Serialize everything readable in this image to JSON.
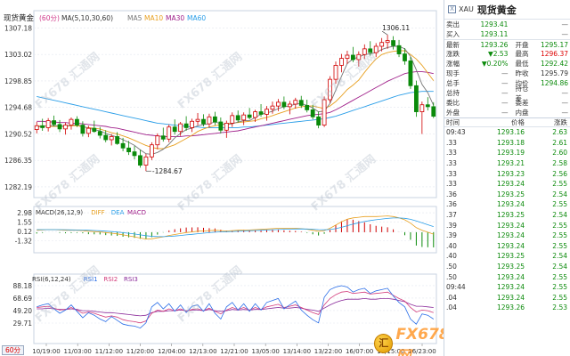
{
  "header": {
    "symbol_label": "现货黄金",
    "period": "(60分)",
    "ma_label": "MA(5,10,30,60)",
    "ma5": "MA5",
    "ma10": "MA10",
    "ma30": "MA30",
    "ma60": "MA60"
  },
  "price_axis": [
    "1307.18",
    "1303.02",
    "1298.85",
    "1294.68",
    "1290.52",
    "1286.35",
    "1282.19"
  ],
  "macd": {
    "label": "MACD(26,12,9)",
    "dif": "DIFF",
    "dea": "DEA",
    "macd": "MACD",
    "axis": [
      "2.98",
      "1.55",
      "0.12",
      "-1.32"
    ]
  },
  "rsi": {
    "label": "RSI(6,12,24)",
    "rsi1": "RSI1",
    "rsi2": "RSI2",
    "rsi3": "RSI3",
    "axis": [
      "88.18",
      "68.69",
      "49.20",
      "29.71"
    ]
  },
  "time_axis": [
    "10/19:00",
    "11/03:00",
    "11/12:00",
    "11/20:00",
    "12/04:00",
    "12/13:00",
    "12/21:00",
    "13/05:00",
    "13/14:00",
    "13/22:00",
    "16/07:00",
    "16/15:00",
    "16/23:00"
  ],
  "annotations": {
    "high": "1306.11",
    "low": "1284.67"
  },
  "period_tab": "60分",
  "watermark": "FX678 汇通网",
  "brand": {
    "coin": "汇",
    "text": "FX678 汇通网"
  },
  "colors": {
    "up": "#d00000",
    "down": "#0a8a0a",
    "ma5": "#777777",
    "ma10": "#e8a020",
    "ma30": "#a0208a",
    "ma60": "#2a9ee8"
  },
  "panel": {
    "icon": "X",
    "code": "XAU",
    "name": "现货黄金",
    "rows": [
      {
        "l1": "卖出",
        "v1": "1293.41",
        "c1": "down",
        "l2": "",
        "v2": "—",
        "c2": "dash"
      },
      {
        "l1": "买入",
        "v1": "1293.11",
        "c1": "down",
        "l2": "",
        "v2": "—",
        "c2": "dash"
      },
      {
        "l1": "最新",
        "v1": "1293.26",
        "c1": "down",
        "l2": "开盘",
        "v2": "1295.17",
        "c2": "down"
      },
      {
        "l1": "涨跌",
        "v1": "▼2.53",
        "c1": "down",
        "l2": "最高",
        "v2": "1296.37",
        "c2": "red"
      },
      {
        "l1": "涨幅",
        "v1": "▼0.20%",
        "c1": "down",
        "l2": "最低",
        "v2": "1292.42",
        "c2": "down"
      },
      {
        "l1": "现手",
        "v1": "—",
        "c1": "dash",
        "l2": "昨收",
        "v2": "1295.79",
        "c2": "blk"
      },
      {
        "l1": "总手",
        "v1": "—",
        "c1": "dash",
        "l2": "均价",
        "v2": "1294.86",
        "c2": "down"
      },
      {
        "l1": "总持",
        "v1": "—",
        "c1": "dash",
        "l2": "持仓差",
        "v2": "—",
        "c2": "dash"
      },
      {
        "l1": "委比",
        "v1": "—",
        "c1": "dash",
        "l2": "委差",
        "v2": "—",
        "c2": "dash"
      },
      {
        "l1": "外盘",
        "v1": "—",
        "c1": "dash",
        "l2": "内盘",
        "v2": "—",
        "c2": "dash"
      }
    ],
    "tick_header": {
      "time": "时间",
      "price": "价格",
      "change": "涨跌"
    },
    "ticks": [
      {
        "t": "09:43",
        "p": "1293.16",
        "c": "2.63"
      },
      {
        "t": ".33",
        "p": "1293.18",
        "c": "2.61"
      },
      {
        "t": ".33",
        "p": "1293.19",
        "c": "2.60"
      },
      {
        "t": ".33",
        "p": "1293.21",
        "c": "2.58"
      },
      {
        "t": ".33",
        "p": "1293.23",
        "c": "2.56"
      },
      {
        "t": ".33",
        "p": "1293.24",
        "c": "2.55"
      },
      {
        "t": ".36",
        "p": "1293.25",
        "c": "2.54"
      },
      {
        "t": ".36",
        "p": "1293.24",
        "c": "2.55"
      },
      {
        "t": ".37",
        "p": "1293.25",
        "c": "2.54"
      },
      {
        "t": ".39",
        "p": "1293.24",
        "c": "2.55"
      },
      {
        "t": ".39",
        "p": "1293.24",
        "c": "2.55"
      },
      {
        "t": ".40",
        "p": "1293.24",
        "c": "2.55"
      },
      {
        "t": ".40",
        "p": "1293.25",
        "c": "2.54"
      },
      {
        "t": ".50",
        "p": "1293.25",
        "c": "2.54"
      },
      {
        "t": ".50",
        "p": "1293.24",
        "c": "2.55"
      },
      {
        "t": "09:44",
        "p": "1293.24",
        "c": "2.55"
      },
      {
        "t": ".04",
        "p": "1293.24",
        "c": "2.55"
      },
      {
        "t": ".04",
        "p": "1293.26",
        "c": "2.53"
      }
    ]
  },
  "chart_data": {
    "type": "candlestick",
    "ylim": [
      1280.5,
      1308.5
    ],
    "candles": [
      [
        1291.2,
        1292.4,
        1290.6,
        1291.8
      ],
      [
        1291.8,
        1292.9,
        1291.0,
        1291.5
      ],
      [
        1291.5,
        1293.0,
        1290.9,
        1292.6
      ],
      [
        1292.6,
        1293.4,
        1291.7,
        1292.0
      ],
      [
        1292.0,
        1292.7,
        1290.8,
        1291.3
      ],
      [
        1291.3,
        1292.3,
        1290.4,
        1291.9
      ],
      [
        1291.9,
        1293.1,
        1291.2,
        1292.8
      ],
      [
        1292.8,
        1293.3,
        1291.6,
        1291.9
      ],
      [
        1291.9,
        1292.5,
        1290.1,
        1290.6
      ],
      [
        1290.6,
        1291.8,
        1290.0,
        1291.4
      ],
      [
        1291.4,
        1292.6,
        1290.7,
        1290.9
      ],
      [
        1290.9,
        1291.6,
        1289.8,
        1290.3
      ],
      [
        1290.3,
        1291.1,
        1289.2,
        1289.6
      ],
      [
        1289.6,
        1290.5,
        1288.7,
        1290.1
      ],
      [
        1290.1,
        1290.8,
        1288.8,
        1289.0
      ],
      [
        1289.0,
        1289.9,
        1287.8,
        1288.3
      ],
      [
        1288.3,
        1289.4,
        1287.2,
        1287.7
      ],
      [
        1287.7,
        1288.6,
        1286.5,
        1287.1
      ],
      [
        1287.1,
        1288.0,
        1285.2,
        1285.6
      ],
      [
        1285.6,
        1287.4,
        1284.67,
        1286.9
      ],
      [
        1286.9,
        1289.2,
        1286.4,
        1288.8
      ],
      [
        1288.8,
        1290.6,
        1288.1,
        1290.2
      ],
      [
        1290.2,
        1291.5,
        1289.3,
        1289.7
      ],
      [
        1289.7,
        1292.0,
        1289.2,
        1291.6
      ],
      [
        1291.6,
        1292.8,
        1290.4,
        1290.9
      ],
      [
        1290.9,
        1292.4,
        1290.2,
        1292.1
      ],
      [
        1292.1,
        1293.3,
        1291.0,
        1291.5
      ],
      [
        1291.5,
        1292.9,
        1290.8,
        1292.5
      ],
      [
        1292.5,
        1293.8,
        1291.9,
        1292.8
      ],
      [
        1292.8,
        1293.6,
        1291.7,
        1292.1
      ],
      [
        1292.1,
        1293.7,
        1291.5,
        1293.2
      ],
      [
        1293.2,
        1294.0,
        1291.9,
        1292.4
      ],
      [
        1292.4,
        1293.1,
        1290.6,
        1291.1
      ],
      [
        1291.1,
        1292.6,
        1289.9,
        1292.2
      ],
      [
        1292.2,
        1293.9,
        1291.6,
        1293.4
      ],
      [
        1293.4,
        1294.2,
        1292.3,
        1292.7
      ],
      [
        1292.7,
        1293.9,
        1291.9,
        1293.5
      ],
      [
        1293.5,
        1294.6,
        1292.8,
        1293.1
      ],
      [
        1293.1,
        1294.3,
        1292.4,
        1294.0
      ],
      [
        1294.0,
        1295.2,
        1293.2,
        1293.6
      ],
      [
        1293.6,
        1294.9,
        1292.6,
        1294.4
      ],
      [
        1294.4,
        1295.6,
        1293.7,
        1294.9
      ],
      [
        1294.9,
        1296.0,
        1294.1,
        1295.5
      ],
      [
        1295.5,
        1296.4,
        1294.4,
        1294.8
      ],
      [
        1294.8,
        1295.7,
        1293.6,
        1295.2
      ],
      [
        1295.2,
        1296.2,
        1294.5,
        1295.8
      ],
      [
        1295.8,
        1296.5,
        1294.6,
        1295.0
      ],
      [
        1295.0,
        1295.9,
        1293.9,
        1294.3
      ],
      [
        1294.3,
        1295.1,
        1292.8,
        1293.2
      ],
      [
        1293.2,
        1294.0,
        1291.4,
        1291.9
      ],
      [
        1291.9,
        1296.4,
        1291.6,
        1295.9
      ],
      [
        1295.9,
        1299.6,
        1295.4,
        1299.1
      ],
      [
        1299.1,
        1301.9,
        1298.4,
        1301.3
      ],
      [
        1301.3,
        1303.1,
        1300.2,
        1302.4
      ],
      [
        1302.4,
        1303.6,
        1301.5,
        1302.9
      ],
      [
        1302.9,
        1304.2,
        1301.8,
        1302.2
      ],
      [
        1302.2,
        1303.5,
        1301.1,
        1303.0
      ],
      [
        1303.0,
        1304.6,
        1302.3,
        1303.9
      ],
      [
        1303.9,
        1305.1,
        1302.8,
        1303.3
      ],
      [
        1303.3,
        1304.8,
        1302.6,
        1304.3
      ],
      [
        1304.3,
        1305.6,
        1303.5,
        1304.9
      ],
      [
        1304.9,
        1306.11,
        1303.9,
        1305.2
      ],
      [
        1305.2,
        1305.9,
        1303.8,
        1304.4
      ],
      [
        1304.4,
        1305.3,
        1302.6,
        1303.1
      ],
      [
        1303.1,
        1304.0,
        1301.4,
        1302.0
      ],
      [
        1302.0,
        1302.6,
        1297.6,
        1298.1
      ],
      [
        1298.1,
        1298.9,
        1293.2,
        1294.0
      ],
      [
        1294.0,
        1295.6,
        1290.5,
        1295.1
      ],
      [
        1295.1,
        1296.3,
        1294.2,
        1294.8
      ],
      [
        1294.8,
        1295.5,
        1293.0,
        1293.3
      ]
    ],
    "ma5": [
      1291.6,
      1291.7,
      1291.8,
      1291.8,
      1291.8,
      1291.7,
      1291.9,
      1292.0,
      1291.7,
      1291.4,
      1291.2,
      1291.0,
      1290.6,
      1290.3,
      1290.0,
      1289.6,
      1289.2,
      1288.7,
      1288.0,
      1287.4,
      1287.3,
      1287.6,
      1288.1,
      1288.9,
      1289.9,
      1290.6,
      1291.2,
      1291.4,
      1291.8,
      1292.0,
      1292.1,
      1292.4,
      1292.1,
      1292.0,
      1292.1,
      1292.4,
      1292.6,
      1292.6,
      1293.1,
      1293.6,
      1293.8,
      1294.1,
      1294.5,
      1294.8,
      1294.9,
      1295.2,
      1295.3,
      1295.0,
      1294.6,
      1294.0,
      1294.1,
      1295.3,
      1297.4,
      1299.6,
      1301.6,
      1302.3,
      1302.6,
      1303.0,
      1303.1,
      1303.3,
      1303.8,
      1304.1,
      1304.3,
      1304.3,
      1303.9,
      1302.7,
      1300.6,
      1298.3,
      1297.0,
      1295.0
    ],
    "ma10": [
      1291.8,
      1291.8,
      1291.7,
      1291.7,
      1291.7,
      1291.7,
      1291.8,
      1291.8,
      1291.6,
      1291.5,
      1291.4,
      1291.3,
      1291.0,
      1290.7,
      1290.5,
      1290.2,
      1289.9,
      1289.5,
      1289.1,
      1288.7,
      1288.4,
      1288.2,
      1288.2,
      1288.5,
      1288.8,
      1289.3,
      1289.8,
      1290.3,
      1290.9,
      1291.3,
      1291.6,
      1291.8,
      1292.0,
      1292.1,
      1292.2,
      1292.3,
      1292.4,
      1292.5,
      1292.6,
      1292.9,
      1293.1,
      1293.4,
      1293.7,
      1294.0,
      1294.3,
      1294.6,
      1294.8,
      1294.9,
      1294.9,
      1294.7,
      1294.5,
      1294.9,
      1295.6,
      1296.5,
      1297.5,
      1298.2,
      1299.0,
      1300.2,
      1301.3,
      1302.3,
      1303.0,
      1303.3,
      1303.5,
      1303.6,
      1303.6,
      1303.0,
      1302.3,
      1301.3,
      1300.1,
      1298.9
    ],
    "ma30": [
      1292.5,
      1292.5,
      1292.4,
      1292.4,
      1292.3,
      1292.3,
      1292.2,
      1292.2,
      1292.1,
      1292.0,
      1291.9,
      1291.8,
      1291.7,
      1291.5,
      1291.4,
      1291.2,
      1291.0,
      1290.8,
      1290.6,
      1290.4,
      1290.3,
      1290.2,
      1290.1,
      1290.1,
      1290.1,
      1290.1,
      1290.2,
      1290.2,
      1290.3,
      1290.4,
      1290.5,
      1290.6,
      1290.7,
      1290.8,
      1290.9,
      1291.0,
      1291.2,
      1291.4,
      1291.6,
      1291.8,
      1292.0,
      1292.2,
      1292.4,
      1292.6,
      1292.8,
      1293.0,
      1293.2,
      1293.4,
      1293.5,
      1293.6,
      1293.7,
      1293.9,
      1294.3,
      1294.8,
      1295.3,
      1295.8,
      1296.3,
      1296.8,
      1297.3,
      1297.8,
      1298.3,
      1298.8,
      1299.2,
      1299.6,
      1300.0,
      1300.2,
      1300.3,
      1300.3,
      1300.2,
      1300.0
    ],
    "ma60": [
      1296.4,
      1296.2,
      1296.0,
      1295.8,
      1295.6,
      1295.4,
      1295.2,
      1295.0,
      1294.8,
      1294.6,
      1294.4,
      1294.2,
      1294.0,
      1293.8,
      1293.6,
      1293.4,
      1293.2,
      1293.0,
      1292.8,
      1292.6,
      1292.4,
      1292.2,
      1292.1,
      1292.0,
      1291.9,
      1291.8,
      1291.7,
      1291.6,
      1291.6,
      1291.5,
      1291.5,
      1291.5,
      1291.5,
      1291.5,
      1291.5,
      1291.5,
      1291.6,
      1291.6,
      1291.7,
      1291.8,
      1291.9,
      1292.0,
      1292.1,
      1292.2,
      1292.3,
      1292.4,
      1292.5,
      1292.6,
      1292.7,
      1292.8,
      1292.9,
      1293.1,
      1293.3,
      1293.6,
      1293.9,
      1294.2,
      1294.5,
      1294.8,
      1295.1,
      1295.4,
      1295.7,
      1296.0,
      1296.3,
      1296.6,
      1296.8,
      1297.0,
      1297.1,
      1297.2,
      1297.2,
      1297.2
    ],
    "macd_ylim": [
      -2.6,
      3.4
    ],
    "dif": [
      0.3,
      0.35,
      0.4,
      0.4,
      0.35,
      0.3,
      0.3,
      0.3,
      0.25,
      0.15,
      0.1,
      0.05,
      -0.05,
      -0.15,
      -0.25,
      -0.4,
      -0.55,
      -0.7,
      -0.9,
      -1.05,
      -1.0,
      -0.85,
      -0.7,
      -0.5,
      -0.35,
      -0.2,
      -0.05,
      0.05,
      0.15,
      0.2,
      0.25,
      0.3,
      0.25,
      0.2,
      0.25,
      0.3,
      0.35,
      0.35,
      0.4,
      0.45,
      0.5,
      0.55,
      0.6,
      0.6,
      0.6,
      0.6,
      0.55,
      0.45,
      0.3,
      0.15,
      0.25,
      0.6,
      1.1,
      1.6,
      2.0,
      2.2,
      2.3,
      2.4,
      2.4,
      2.4,
      2.45,
      2.5,
      2.4,
      2.2,
      1.9,
      1.4,
      0.7,
      0.3,
      0.0,
      -0.3
    ],
    "dea": [
      0.4,
      0.4,
      0.4,
      0.4,
      0.4,
      0.38,
      0.36,
      0.35,
      0.33,
      0.3,
      0.26,
      0.22,
      0.17,
      0.1,
      0.03,
      -0.06,
      -0.16,
      -0.27,
      -0.4,
      -0.53,
      -0.62,
      -0.67,
      -0.68,
      -0.64,
      -0.58,
      -0.5,
      -0.41,
      -0.32,
      -0.23,
      -0.14,
      -0.06,
      0.01,
      0.06,
      0.09,
      0.12,
      0.16,
      0.2,
      0.23,
      0.26,
      0.3,
      0.34,
      0.38,
      0.42,
      0.45,
      0.48,
      0.5,
      0.51,
      0.5,
      0.46,
      0.4,
      0.37,
      0.42,
      0.55,
      0.76,
      1.0,
      1.24,
      1.45,
      1.64,
      1.79,
      1.91,
      2.02,
      2.12,
      2.18,
      2.19,
      2.13,
      1.98,
      1.72,
      1.43,
      1.15,
      0.86
    ],
    "rsi_ylim": [
      20,
      95
    ],
    "rsi1": [
      55,
      58,
      60,
      52,
      45,
      50,
      58,
      48,
      38,
      46,
      42,
      36,
      32,
      40,
      34,
      28,
      26,
      25,
      22,
      30,
      55,
      62,
      52,
      60,
      48,
      58,
      46,
      56,
      58,
      48,
      60,
      45,
      36,
      55,
      62,
      50,
      60,
      48,
      60,
      50,
      62,
      65,
      68,
      52,
      58,
      64,
      50,
      42,
      35,
      30,
      70,
      82,
      86,
      88,
      86,
      78,
      82,
      84,
      76,
      80,
      82,
      84,
      72,
      62,
      55,
      36,
      28,
      44,
      42,
      36
    ],
    "rsi2": [
      54,
      55,
      56,
      53,
      50,
      51,
      54,
      50,
      45,
      47,
      45,
      42,
      39,
      41,
      39,
      35,
      33,
      32,
      30,
      33,
      45,
      50,
      48,
      52,
      49,
      52,
      48,
      51,
      52,
      49,
      53,
      48,
      44,
      50,
      54,
      51,
      54,
      50,
      54,
      51,
      55,
      57,
      59,
      54,
      56,
      58,
      54,
      50,
      46,
      43,
      58,
      68,
      74,
      78,
      79,
      76,
      77,
      78,
      75,
      76,
      77,
      78,
      73,
      68,
      64,
      54,
      47,
      50,
      49,
      46
    ],
    "rsi3": [
      52,
      52,
      53,
      52,
      51,
      51,
      52,
      51,
      49,
      49,
      48,
      47,
      46,
      46,
      45,
      44,
      43,
      42,
      41,
      42,
      46,
      48,
      48,
      49,
      49,
      50,
      49,
      50,
      50,
      49,
      51,
      49,
      48,
      49,
      51,
      50,
      51,
      50,
      51,
      51,
      52,
      53,
      54,
      53,
      53,
      54,
      53,
      51,
      50,
      48,
      53,
      58,
      62,
      65,
      67,
      67,
      67,
      68,
      67,
      67,
      68,
      68,
      67,
      65,
      63,
      59,
      56,
      56,
      55,
      54
    ]
  }
}
